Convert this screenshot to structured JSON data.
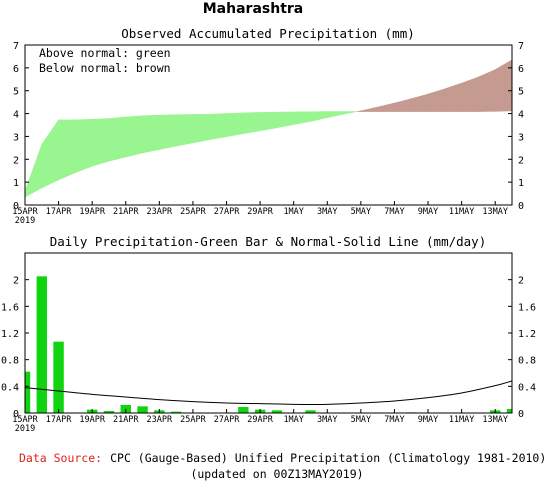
{
  "page_title": "Maharashtra",
  "chart_data": [
    {
      "type": "area",
      "title": "Observed Accumulated Precipitation (mm)",
      "legend": [
        "Above normal: green",
        "Below normal: brown"
      ],
      "legend_placement": "top-left",
      "colors": {
        "above": "#99f58f",
        "below": "#c49a91"
      },
      "x_day_range": [
        0,
        29
      ],
      "x_ticks": [
        "15APR",
        "17APR",
        "19APR",
        "21APR",
        "23APR",
        "25APR",
        "27APR",
        "29APR",
        "1MAY",
        "3MAY",
        "5MAY",
        "7MAY",
        "9MAY",
        "11MAY",
        "13MAY"
      ],
      "x_sub_label": "2019",
      "ylim": [
        0,
        7
      ],
      "y_ticks": [
        0,
        1,
        2,
        3,
        4,
        5,
        6,
        7
      ],
      "series": [
        {
          "name": "Observed",
          "x": [
            0,
            1,
            2,
            3,
            4,
            5,
            6,
            7,
            8,
            9,
            10,
            11,
            12,
            13,
            14,
            15,
            16,
            17,
            18,
            19,
            20,
            21,
            22,
            23,
            24,
            25,
            26,
            27,
            28,
            29
          ],
          "values": [
            0.6,
            2.65,
            3.72,
            3.72,
            3.75,
            3.78,
            3.85,
            3.9,
            3.93,
            3.95,
            3.96,
            3.97,
            4.0,
            4.03,
            4.05,
            4.06,
            4.07,
            4.08,
            4.09,
            4.09,
            4.09,
            4.09,
            4.09,
            4.09,
            4.09,
            4.09,
            4.09,
            4.09,
            4.1,
            4.12
          ]
        },
        {
          "name": "Normal",
          "x": [
            0,
            1,
            2,
            3,
            4,
            5,
            6,
            7,
            8,
            9,
            10,
            11,
            12,
            13,
            14,
            15,
            16,
            17,
            18,
            19,
            20,
            21,
            22,
            23,
            24,
            25,
            26,
            27,
            28,
            29
          ],
          "values": [
            0.35,
            0.75,
            1.1,
            1.42,
            1.7,
            1.92,
            2.1,
            2.28,
            2.43,
            2.58,
            2.72,
            2.86,
            2.99,
            3.12,
            3.25,
            3.38,
            3.52,
            3.66,
            3.82,
            3.98,
            4.12,
            4.28,
            4.46,
            4.65,
            4.85,
            5.08,
            5.33,
            5.6,
            5.92,
            6.35
          ]
        }
      ]
    },
    {
      "type": "bar",
      "title": "Daily Precipitation-Green Bar & Normal-Solid Line (mm/day)",
      "colors": {
        "bar": "#11d411",
        "line": "#000000"
      },
      "x_day_range": [
        0,
        29
      ],
      "x_ticks": [
        "15APR",
        "17APR",
        "19APR",
        "21APR",
        "23APR",
        "25APR",
        "27APR",
        "29APR",
        "1MAY",
        "3MAY",
        "5MAY",
        "7MAY",
        "9MAY",
        "11MAY",
        "13MAY"
      ],
      "x_sub_label": "2019",
      "ylim": [
        0,
        2.4
      ],
      "y_ticks": [
        "0",
        "0.4",
        "0.8",
        "1.2",
        "1.6",
        "2"
      ],
      "series": [
        {
          "name": "Daily precipitation",
          "x": [
            0,
            1,
            2,
            3,
            4,
            5,
            6,
            7,
            8,
            9,
            10,
            11,
            12,
            13,
            14,
            15,
            16,
            17,
            18,
            19,
            20,
            21,
            22,
            23,
            24,
            25,
            26,
            27,
            28,
            29
          ],
          "values": [
            0.62,
            2.05,
            1.07,
            0.0,
            0.05,
            0.03,
            0.12,
            0.1,
            0.04,
            0.02,
            0.0,
            0.0,
            0.0,
            0.09,
            0.05,
            0.04,
            0.0,
            0.04,
            0.0,
            0.0,
            0.0,
            0.0,
            0.0,
            0.01,
            0.0,
            0.0,
            0.0,
            0.0,
            0.04,
            0.06
          ]
        },
        {
          "name": "Normal",
          "x": [
            0,
            2,
            4,
            6,
            8,
            10,
            12,
            14,
            16,
            18,
            20,
            22,
            24,
            26,
            28,
            29
          ],
          "values": [
            0.38,
            0.33,
            0.28,
            0.24,
            0.2,
            0.17,
            0.15,
            0.14,
            0.13,
            0.13,
            0.15,
            0.18,
            0.23,
            0.3,
            0.41,
            0.48
          ]
        }
      ]
    }
  ],
  "footer": {
    "source_label": "Data Source:",
    "source_text": "CPC (Gauge-Based) Unified Precipitation (Climatology 1981-2010)",
    "updated_text": "(updated on 00Z13MAY2019)"
  }
}
